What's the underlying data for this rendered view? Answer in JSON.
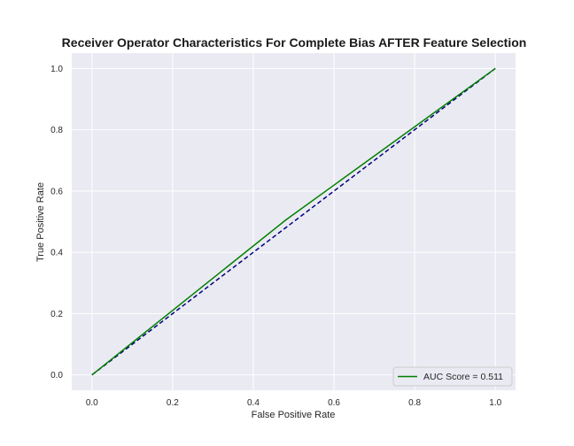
{
  "chart_data": {
    "type": "line",
    "title": "Receiver Operator Characteristics For Complete Bias AFTER Feature Selection",
    "xlabel": "False Positive Rate",
    "ylabel": "True Positive Rate",
    "xlim": [
      -0.05,
      1.05
    ],
    "ylim": [
      -0.05,
      1.05
    ],
    "xticks": [
      0.0,
      0.2,
      0.4,
      0.6,
      0.8,
      1.0
    ],
    "yticks": [
      0.0,
      0.2,
      0.4,
      0.6,
      0.8,
      1.0
    ],
    "xtick_labels": [
      "0.0",
      "0.2",
      "0.4",
      "0.6",
      "0.8",
      "1.0"
    ],
    "ytick_labels": [
      "0.0",
      "0.2",
      "0.4",
      "0.6",
      "0.8",
      "1.0"
    ],
    "grid": true,
    "background": "#eaeaf2",
    "legend_position": "lower-right",
    "series": [
      {
        "name": "AUC Score = 0.511",
        "x": [
          0.0,
          0.48,
          1.0
        ],
        "y": [
          0.0,
          0.505,
          1.0
        ],
        "color": "#008000",
        "style": "solid",
        "in_legend": true
      },
      {
        "name": "",
        "x": [
          0.0,
          1.0
        ],
        "y": [
          0.0,
          1.0
        ],
        "color": "#000080",
        "style": "dashed",
        "in_legend": false
      }
    ]
  }
}
